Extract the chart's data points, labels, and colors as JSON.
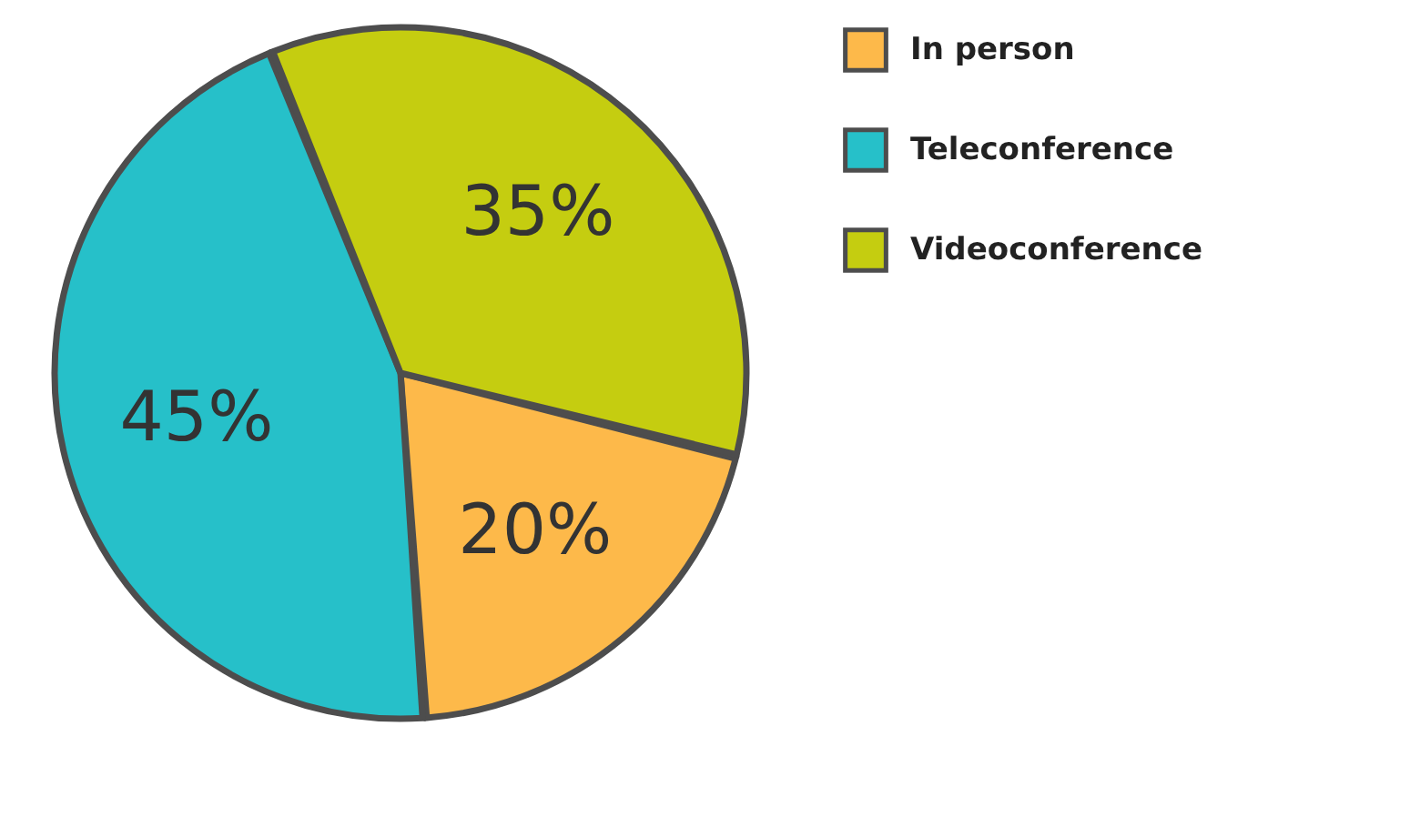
{
  "chart_data": {
    "type": "pie",
    "categories": [
      "In person",
      "Teleconference",
      "Videoconference"
    ],
    "values": [
      20,
      45,
      35
    ],
    "colors": [
      "#fdb94a",
      "#26c0c9",
      "#c5cd10"
    ],
    "value_labels": [
      "20%",
      "45%",
      "35%"
    ],
    "legend": "right"
  }
}
